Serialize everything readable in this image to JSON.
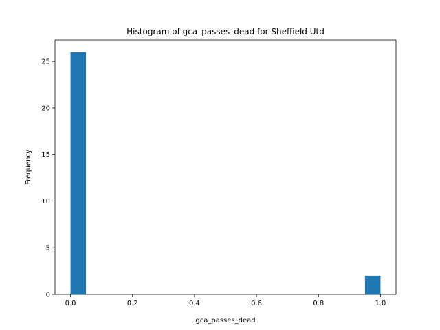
{
  "chart_data": {
    "type": "bar",
    "title": "Histogram of gca_passes_dead for Sheffield Utd",
    "xlabel": "gca_passes_dead",
    "ylabel": "Frequency",
    "xlim": [
      -0.05,
      1.05
    ],
    "ylim": [
      0,
      27.3
    ],
    "bin_width": 0.05,
    "bins": [
      {
        "start": 0.0,
        "end": 0.05,
        "count": 26
      },
      {
        "start": 0.95,
        "end": 1.0,
        "count": 2
      }
    ],
    "x_ticks": [
      {
        "value": 0.0,
        "label": "0.0"
      },
      {
        "value": 0.2,
        "label": "0.2"
      },
      {
        "value": 0.4,
        "label": "0.4"
      },
      {
        "value": 0.6,
        "label": "0.6"
      },
      {
        "value": 0.8,
        "label": "0.8"
      },
      {
        "value": 1.0,
        "label": "1.0"
      }
    ],
    "y_ticks": [
      {
        "value": 0,
        "label": "0"
      },
      {
        "value": 5,
        "label": "5"
      },
      {
        "value": 10,
        "label": "10"
      },
      {
        "value": 15,
        "label": "15"
      },
      {
        "value": 20,
        "label": "20"
      },
      {
        "value": 25,
        "label": "25"
      }
    ],
    "grid": false,
    "colors": {
      "bar": "#1f77b4",
      "axis": "#000000",
      "background": "#ffffff"
    }
  }
}
